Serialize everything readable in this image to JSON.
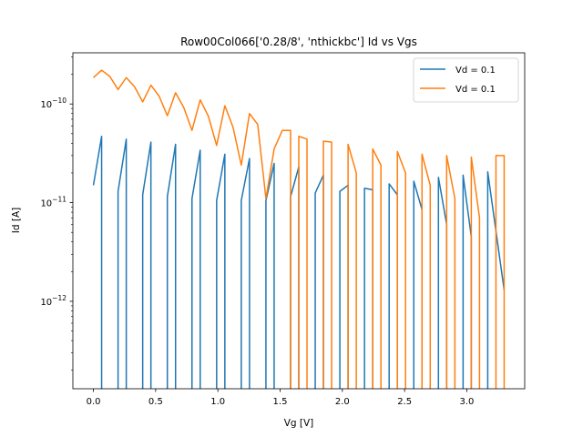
{
  "chart_data": {
    "type": "line",
    "title": "Row00Col066['0.28/8', 'nthickbc'] Id vs Vgs",
    "xlabel": "Vg [V]",
    "ylabel": "Id [A]",
    "yscale": "log",
    "xlim": [
      -0.165,
      3.465
    ],
    "ylim": [
      1.3e-13,
      3.3e-10
    ],
    "x_ticks": [
      0.0,
      0.5,
      1.0,
      1.5,
      2.0,
      2.5,
      3.0
    ],
    "x_tick_labels": [
      "0.0",
      "0.5",
      "1.0",
      "1.5",
      "2.0",
      "2.5",
      "3.0"
    ],
    "y_ticks": [
      1e-12,
      1e-11,
      1e-10
    ],
    "y_tick_base": "10",
    "y_tick_exponents": [
      "−12",
      "−11",
      "−10"
    ],
    "legend_position": "top-right",
    "grid": false,
    "series": [
      {
        "name": "Vd = 0.1",
        "color": "#1f77b4",
        "points": [
          [
            0.0,
            1.5e-11
          ],
          [
            0.066,
            4.7e-11
          ],
          [
            0.066,
            1e-13
          ],
          [
            0.198,
            1e-13
          ],
          [
            0.198,
            1.3e-11
          ],
          [
            0.264,
            4.4e-11
          ],
          [
            0.264,
            1e-13
          ],
          [
            0.396,
            1e-13
          ],
          [
            0.396,
            1.2e-11
          ],
          [
            0.462,
            4.1e-11
          ],
          [
            0.462,
            1e-13
          ],
          [
            0.594,
            1e-13
          ],
          [
            0.594,
            1.15e-11
          ],
          [
            0.66,
            3.9e-11
          ],
          [
            0.66,
            1e-13
          ],
          [
            0.792,
            1e-13
          ],
          [
            0.792,
            1.1e-11
          ],
          [
            0.858,
            3.4e-11
          ],
          [
            0.858,
            1e-13
          ],
          [
            0.99,
            1e-13
          ],
          [
            0.99,
            1.05e-11
          ],
          [
            1.056,
            3.1e-11
          ],
          [
            1.056,
            1e-13
          ],
          [
            1.188,
            1e-13
          ],
          [
            1.188,
            1.05e-11
          ],
          [
            1.254,
            2.8e-11
          ],
          [
            1.254,
            1e-13
          ],
          [
            1.386,
            1e-13
          ],
          [
            1.386,
            1.05e-11
          ],
          [
            1.452,
            2.5e-11
          ],
          [
            1.452,
            1e-13
          ],
          [
            1.584,
            1e-13
          ],
          [
            1.584,
            1.15e-11
          ],
          [
            1.65,
            2.3e-11
          ],
          [
            1.65,
            1e-13
          ],
          [
            1.782,
            1e-13
          ],
          [
            1.782,
            1.25e-11
          ],
          [
            1.848,
            1.9e-11
          ],
          [
            1.848,
            1e-13
          ],
          [
            1.98,
            1e-13
          ],
          [
            1.98,
            1.3e-11
          ],
          [
            2.046,
            1.5e-11
          ],
          [
            2.046,
            1e-13
          ],
          [
            2.178,
            1e-13
          ],
          [
            2.178,
            1.4e-11
          ],
          [
            2.244,
            1.35e-11
          ],
          [
            2.244,
            1e-13
          ],
          [
            2.376,
            1e-13
          ],
          [
            2.376,
            1.55e-11
          ],
          [
            2.442,
            1.2e-11
          ],
          [
            2.442,
            1e-13
          ],
          [
            2.574,
            1e-13
          ],
          [
            2.574,
            1.65e-11
          ],
          [
            2.64,
            8.5e-12
          ],
          [
            2.64,
            1e-13
          ],
          [
            2.772,
            1e-13
          ],
          [
            2.772,
            1.8e-11
          ],
          [
            2.838,
            6e-12
          ],
          [
            2.838,
            1e-13
          ],
          [
            2.97,
            1e-13
          ],
          [
            2.97,
            1.9e-11
          ],
          [
            3.036,
            4.5e-12
          ],
          [
            3.036,
            1e-13
          ],
          [
            3.168,
            1e-13
          ],
          [
            3.168,
            2.05e-11
          ],
          [
            3.3,
            1.3e-12
          ]
        ]
      },
      {
        "name": "Vd = 0.1",
        "color": "#ff7f0e",
        "points": [
          [
            0.0,
            1.85e-10
          ],
          [
            0.066,
            2.2e-10
          ],
          [
            0.132,
            1.9e-10
          ],
          [
            0.198,
            1.4e-10
          ],
          [
            0.264,
            1.85e-10
          ],
          [
            0.33,
            1.5e-10
          ],
          [
            0.396,
            1.05e-10
          ],
          [
            0.462,
            1.55e-10
          ],
          [
            0.528,
            1.2e-10
          ],
          [
            0.594,
            7.6e-11
          ],
          [
            0.66,
            1.3e-10
          ],
          [
            0.726,
            9.2e-11
          ],
          [
            0.792,
            5.4e-11
          ],
          [
            0.858,
            1.1e-10
          ],
          [
            0.924,
            7.5e-11
          ],
          [
            0.99,
            3.8e-11
          ],
          [
            1.056,
            9.6e-11
          ],
          [
            1.122,
            5.8e-11
          ],
          [
            1.188,
            2.4e-11
          ],
          [
            1.254,
            8e-11
          ],
          [
            1.32,
            6.2e-11
          ],
          [
            1.386,
            1.1e-11
          ],
          [
            1.452,
            3.5e-11
          ],
          [
            1.518,
            5.4e-11
          ],
          [
            1.584,
            5.4e-11
          ],
          [
            1.584,
            1e-13
          ],
          [
            1.65,
            1e-13
          ],
          [
            1.65,
            4.7e-11
          ],
          [
            1.716,
            4.4e-11
          ],
          [
            1.716,
            1e-13
          ],
          [
            1.848,
            1e-13
          ],
          [
            1.848,
            4.2e-11
          ],
          [
            1.914,
            4.1e-11
          ],
          [
            1.914,
            1e-13
          ],
          [
            2.046,
            1e-13
          ],
          [
            2.046,
            3.9e-11
          ],
          [
            2.112,
            2e-11
          ],
          [
            2.112,
            1e-13
          ],
          [
            2.244,
            1e-13
          ],
          [
            2.244,
            3.5e-11
          ],
          [
            2.31,
            2.4e-11
          ],
          [
            2.31,
            1e-13
          ],
          [
            2.442,
            1e-13
          ],
          [
            2.442,
            3.3e-11
          ],
          [
            2.508,
            2e-11
          ],
          [
            2.508,
            1e-13
          ],
          [
            2.64,
            1e-13
          ],
          [
            2.64,
            3.1e-11
          ],
          [
            2.706,
            1.5e-11
          ],
          [
            2.706,
            1e-13
          ],
          [
            2.838,
            1e-13
          ],
          [
            2.838,
            3e-11
          ],
          [
            2.904,
            1.1e-11
          ],
          [
            2.904,
            1e-13
          ],
          [
            3.036,
            1e-13
          ],
          [
            3.036,
            2.9e-11
          ],
          [
            3.102,
            7e-12
          ],
          [
            3.102,
            1e-13
          ],
          [
            3.234,
            1e-13
          ],
          [
            3.234,
            3e-11
          ],
          [
            3.3,
            3e-11
          ],
          [
            3.3,
            1e-13
          ]
        ]
      }
    ]
  }
}
